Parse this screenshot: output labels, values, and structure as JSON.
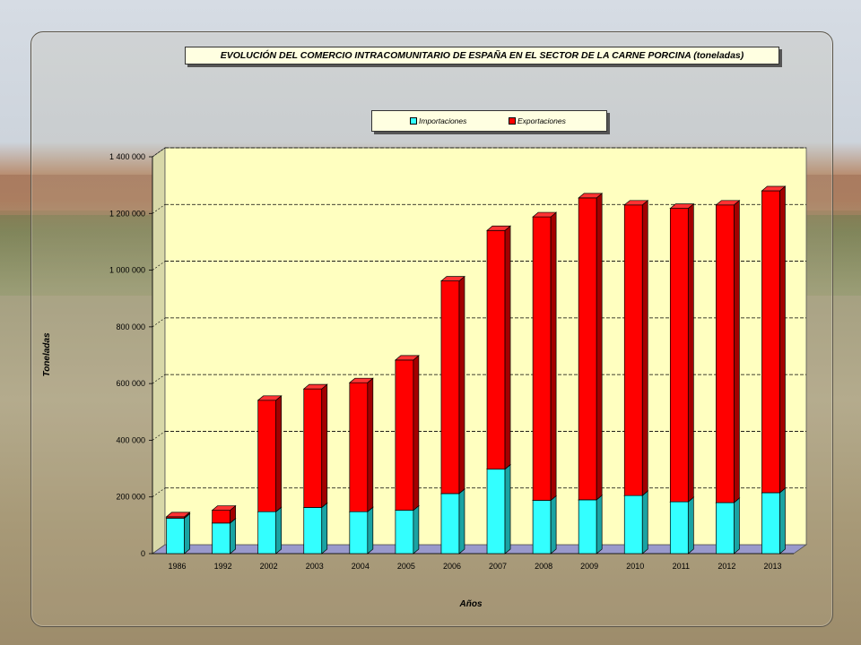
{
  "chart_data": {
    "type": "bar",
    "stacked": true,
    "title": "EVOLUCIÓN DEL COMERCIO INTRACOMUNITARIO DE ESPAÑA EN EL SECTOR DE LA CARNE PORCINA (toneladas)",
    "xlabel": "Años",
    "ylabel": "Toneladas",
    "ylim": [
      0,
      1400000
    ],
    "yticks": [
      0,
      200000,
      400000,
      600000,
      800000,
      1000000,
      1200000,
      1400000
    ],
    "ytick_labels": [
      "0",
      "200 000",
      "400 000",
      "600 000",
      "800 000",
      "1 000 000",
      "1 200 000",
      "1 400 000"
    ],
    "categories": [
      "1986",
      "1992",
      "2002",
      "2003",
      "2004",
      "2005",
      "2006",
      "2007",
      "2008",
      "2009",
      "2010",
      "2011",
      "2012",
      "2013"
    ],
    "series": [
      {
        "name": "Importaciones",
        "color": "#33ffff",
        "values": [
          125000,
          108000,
          148000,
          163000,
          148000,
          153000,
          212000,
          298000,
          188000,
          190000,
          205000,
          183000,
          180000,
          215000
        ]
      },
      {
        "name": "Exportaciones",
        "color": "#ff0000",
        "values": [
          5000,
          45000,
          393000,
          418000,
          455000,
          530000,
          750000,
          842000,
          1000000,
          1065000,
          1025000,
          1035000,
          1050000,
          1065000
        ]
      }
    ],
    "grid": true,
    "legend": "top"
  }
}
